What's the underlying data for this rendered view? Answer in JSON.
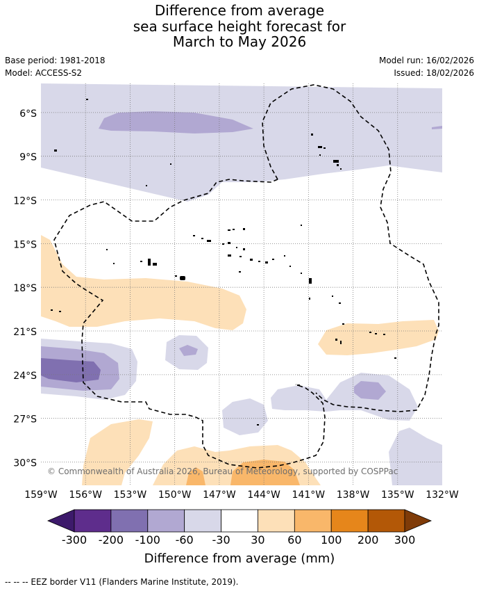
{
  "title": {
    "line1": "Difference from average",
    "line2": "sea surface height forecast for",
    "line3": "March to May 2026"
  },
  "meta": {
    "base_period": "Base period: 1981-2018",
    "model": "Model: ACCESS-S2",
    "model_run": "Model run: 16/02/2026",
    "issued": "Issued: 18/02/2026"
  },
  "map": {
    "lat_labels": [
      "6°S",
      "9°S",
      "12°S",
      "15°S",
      "18°S",
      "21°S",
      "24°S",
      "27°S",
      "30°S"
    ],
    "lat_values": [
      -6,
      -9,
      -12,
      -15,
      -18,
      -21,
      -24,
      -27,
      -30
    ],
    "lon_labels": [
      "159°W",
      "156°W",
      "153°W",
      "150°W",
      "147°W",
      "144°W",
      "141°W",
      "138°W",
      "135°W",
      "132°W"
    ],
    "lon_values": [
      -159,
      -156,
      -153,
      -150,
      -147,
      -144,
      -141,
      -138,
      -135,
      -132
    ],
    "lon_range": [
      -159,
      -132
    ],
    "lat_range": [
      -31.6,
      -4.0
    ],
    "copyright": "© Commonwealth of Australia 2026, Bureau of Meteorology, supported by COSPPac"
  },
  "colorbar": {
    "colors": [
      "#3d1a6b",
      "#5e2d8c",
      "#8070b0",
      "#b1a8d2",
      "#d8d8e9",
      "#ffffff",
      "#fde0b8",
      "#f9b76a",
      "#e6861b",
      "#b35807",
      "#7f3b08"
    ],
    "tick_labels": [
      "-300",
      "-200",
      "-100",
      "-60",
      "-30",
      "30",
      "60",
      "100",
      "200",
      "300"
    ],
    "label": "Difference from average (mm)"
  },
  "footer": {
    "legend_text": "--  --  -- EEZ border V11 (Flanders Marine Institute, 2019)."
  }
}
